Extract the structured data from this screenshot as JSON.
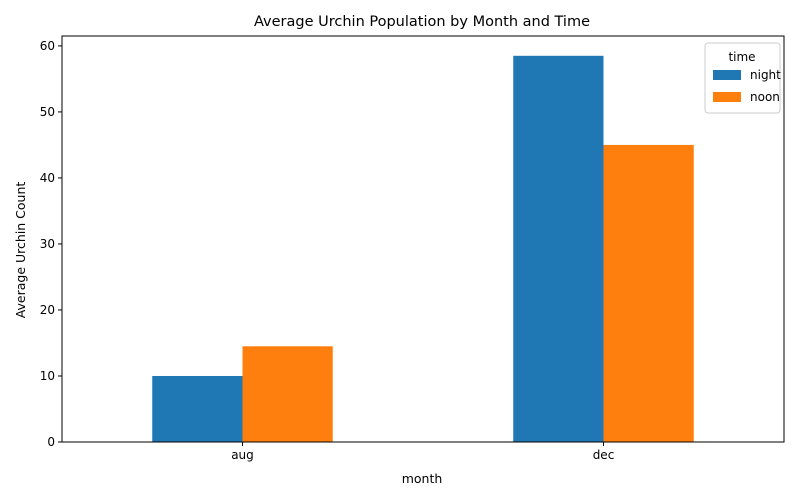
{
  "chart_data": {
    "type": "bar",
    "title": "Average Urchin Population by Month and Time",
    "xlabel": "month",
    "ylabel": "Average Urchin Count",
    "categories": [
      "aug",
      "dec"
    ],
    "series": [
      {
        "name": "night",
        "color": "#1f77b4",
        "values": [
          10.0,
          58.5
        ]
      },
      {
        "name": "noon",
        "color": "#ff7f0e",
        "values": [
          14.5,
          45.0
        ]
      }
    ],
    "ylim": [
      0,
      61.5
    ],
    "yticks": [
      0,
      10,
      20,
      30,
      40,
      50,
      60
    ],
    "legend": {
      "title": "time",
      "placement": "upper right"
    },
    "grid": false
  }
}
